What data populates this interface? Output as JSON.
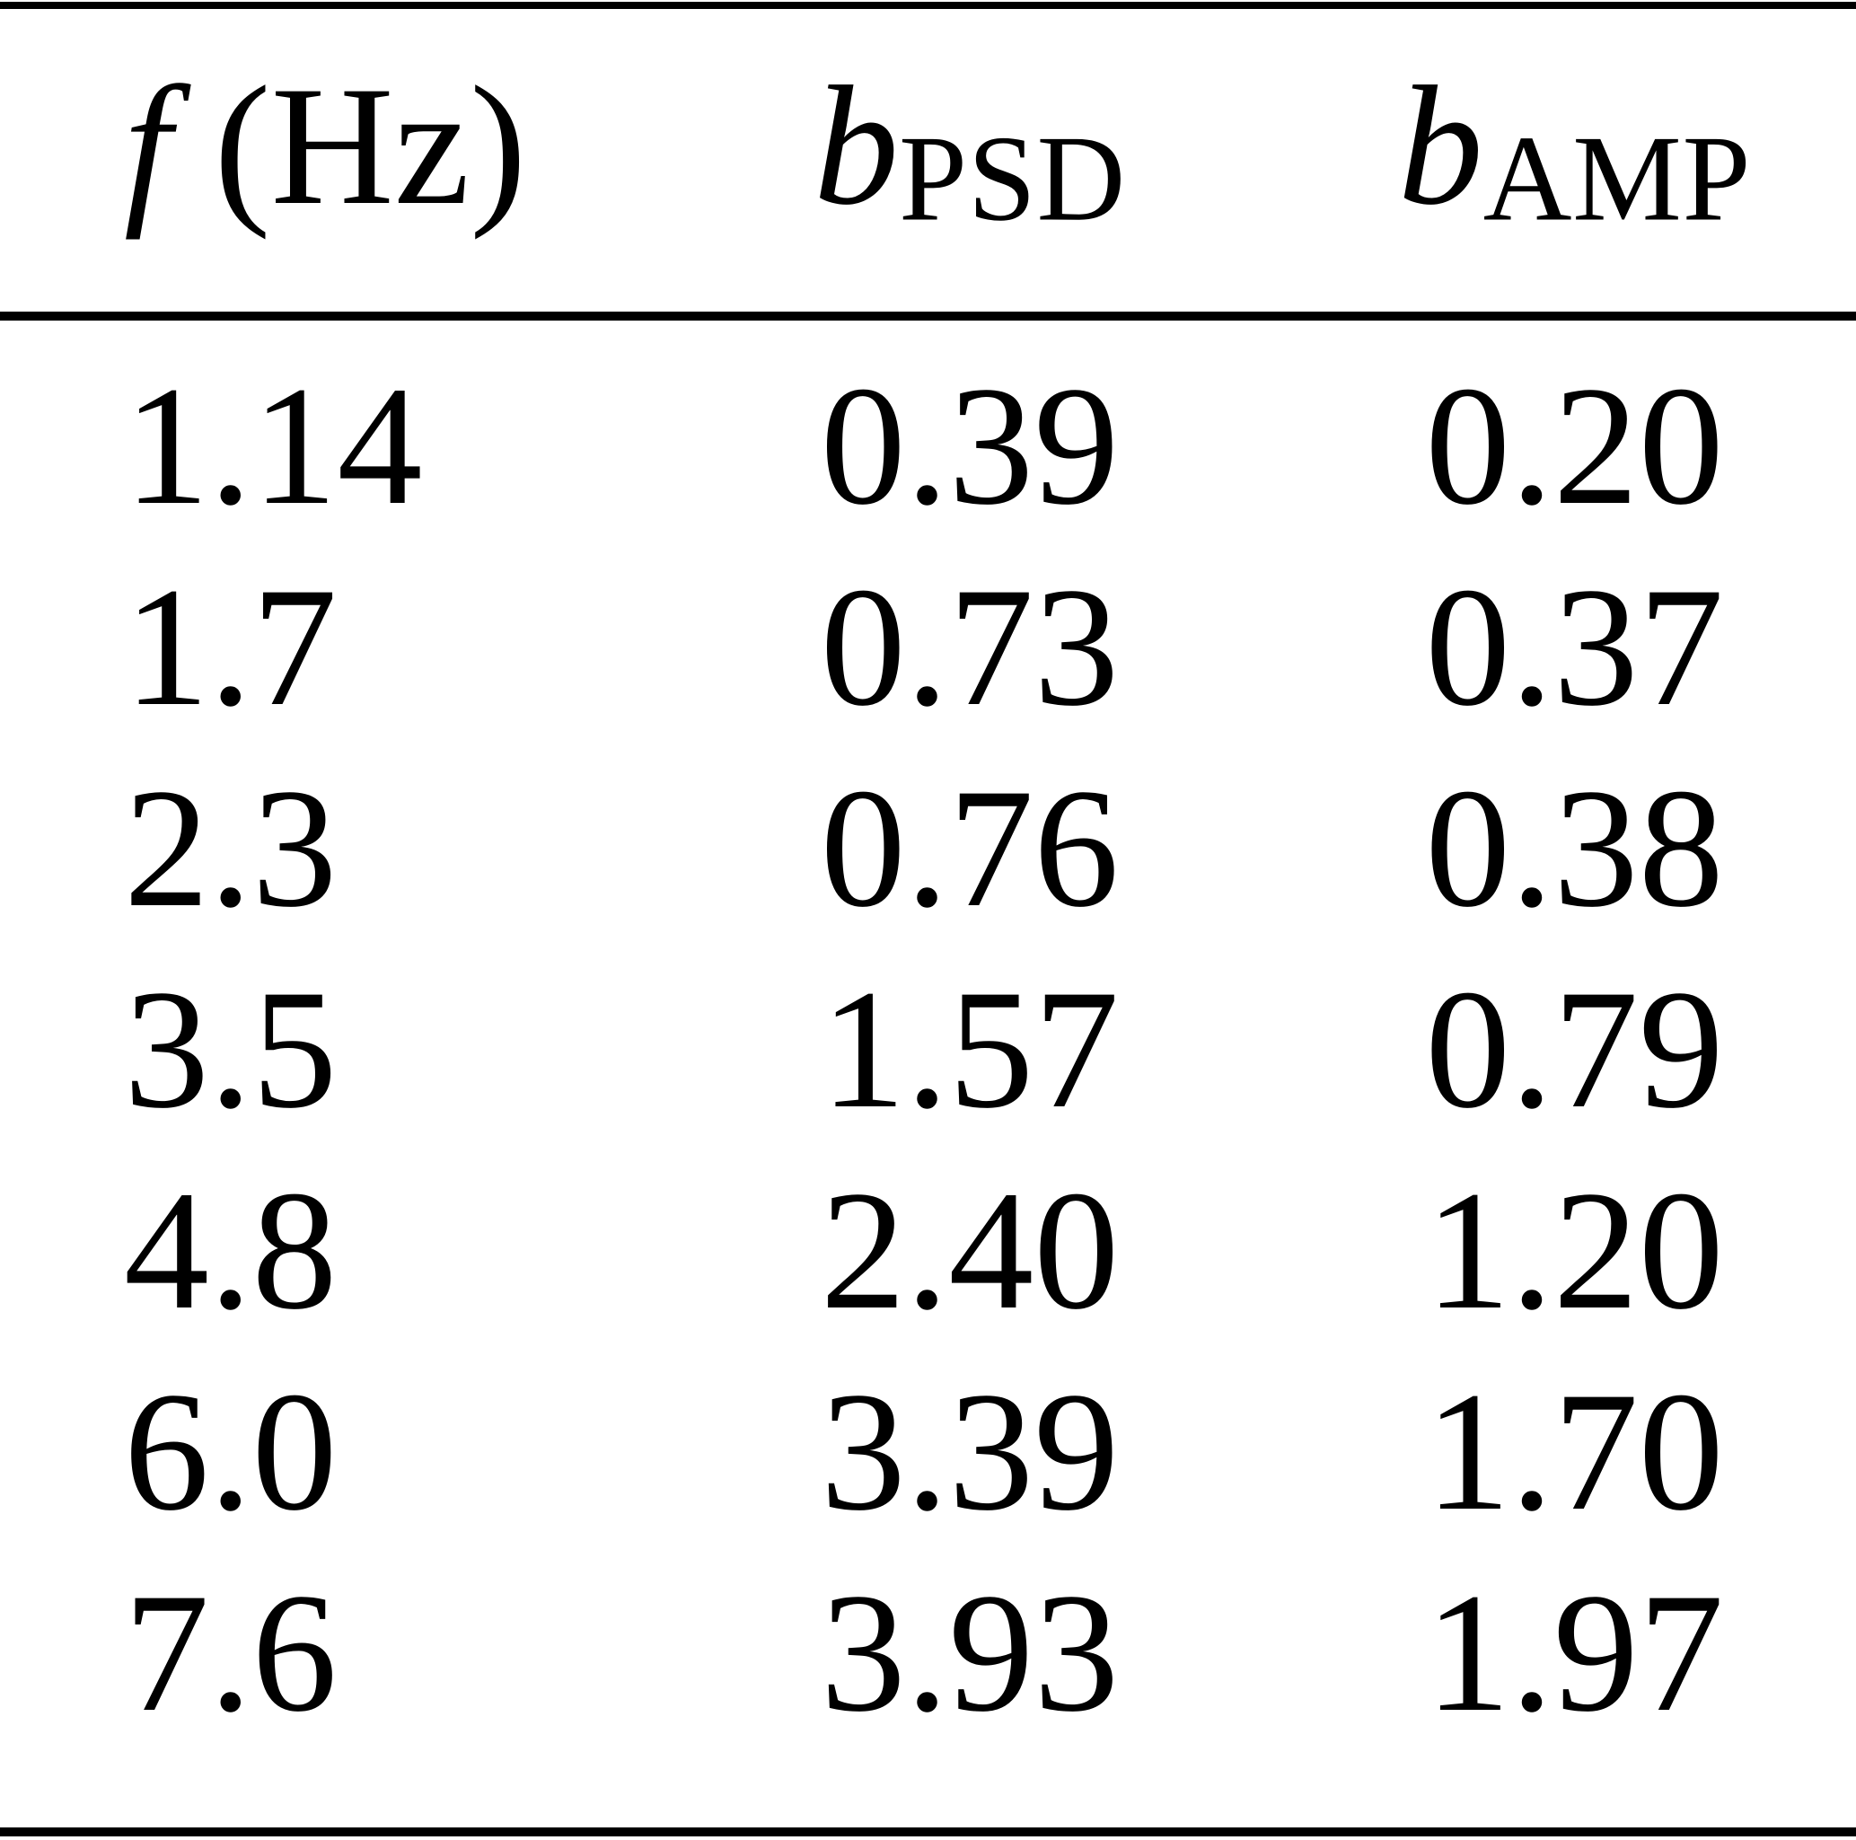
{
  "page": {
    "background": "#ffffff",
    "text_color": "#000000",
    "rule_color": "#000000"
  },
  "table": {
    "columns": [
      {
        "symbol": "f",
        "unit": "(Hz)",
        "subscript": ""
      },
      {
        "symbol": "b",
        "unit": "",
        "subscript": "PSD"
      },
      {
        "symbol": "b",
        "unit": "",
        "subscript": "AMP"
      }
    ],
    "rows": [
      [
        "1.14",
        "0.39",
        "0.20"
      ],
      [
        "1.7",
        "0.73",
        "0.37"
      ],
      [
        "2.3",
        "0.76",
        "0.38"
      ],
      [
        "3.5",
        "1.57",
        "0.79"
      ],
      [
        "4.8",
        "2.40",
        "1.20"
      ],
      [
        "6.0",
        "3.39",
        "1.70"
      ],
      [
        "7.6",
        "3.93",
        "1.97"
      ]
    ]
  },
  "chart_data": {
    "type": "table",
    "columns": [
      "f (Hz)",
      "b_PSD",
      "b_AMP"
    ],
    "rows": [
      [
        1.14,
        0.39,
        0.2
      ],
      [
        1.7,
        0.73,
        0.37
      ],
      [
        2.3,
        0.76,
        0.38
      ],
      [
        3.5,
        1.57,
        0.79
      ],
      [
        4.8,
        2.4,
        1.2
      ],
      [
        6.0,
        3.39,
        1.7
      ],
      [
        7.6,
        3.93,
        1.97
      ]
    ]
  }
}
